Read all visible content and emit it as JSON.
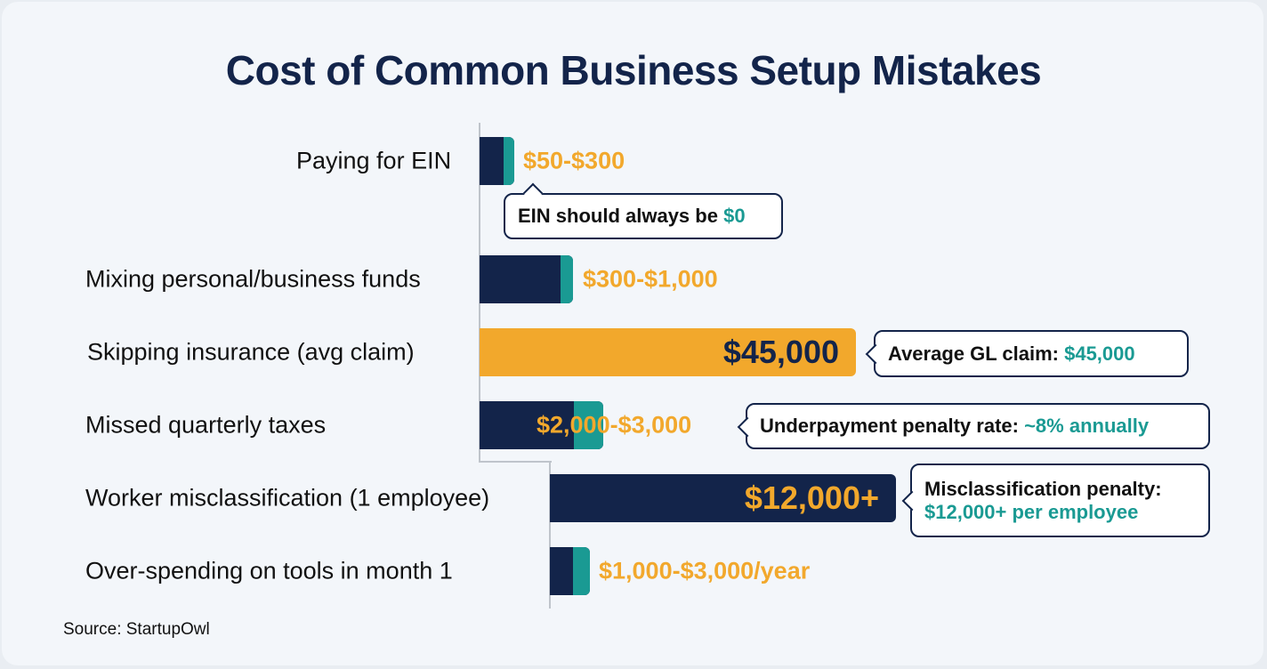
{
  "chart_data": {
    "type": "bar",
    "title": "Cost of Common Business Setup Mistakes",
    "categories": [
      "Paying for EIN",
      "Mixing personal/business funds",
      "Skipping insurance (avg claim)",
      "Missed quarterly taxes",
      "Worker misclassification (1 employee)",
      "Over-spending on tools in month 1"
    ],
    "value_labels": [
      "$50-$300",
      "$300-$1,000",
      "$45,000",
      "$2,000-$3,000",
      "$12,000+",
      "$1,000-$3,000/year"
    ],
    "values_low": [
      50,
      300,
      45000,
      2000,
      12000,
      1000
    ],
    "values_high": [
      300,
      1000,
      45000,
      3000,
      12000,
      3000
    ],
    "highlighted": "Skipping insurance (avg claim)",
    "annotations": [
      {
        "row": 0,
        "text": "EIN should always be ",
        "highlight": "$0"
      },
      {
        "row": 2,
        "text": "Average GL claim: ",
        "highlight": "$45,000"
      },
      {
        "row": 3,
        "text": "Underpayment penalty rate: ",
        "highlight": "~8% annually"
      },
      {
        "row": 4,
        "text": "Misclassification penalty:",
        "highlight": "$12,000+ per employee"
      }
    ],
    "source": "Source: StartupOwl",
    "colors": {
      "navy": "#13244a",
      "teal": "#1a9a93",
      "orange": "#f2a82c",
      "title": "#13244a"
    }
  }
}
